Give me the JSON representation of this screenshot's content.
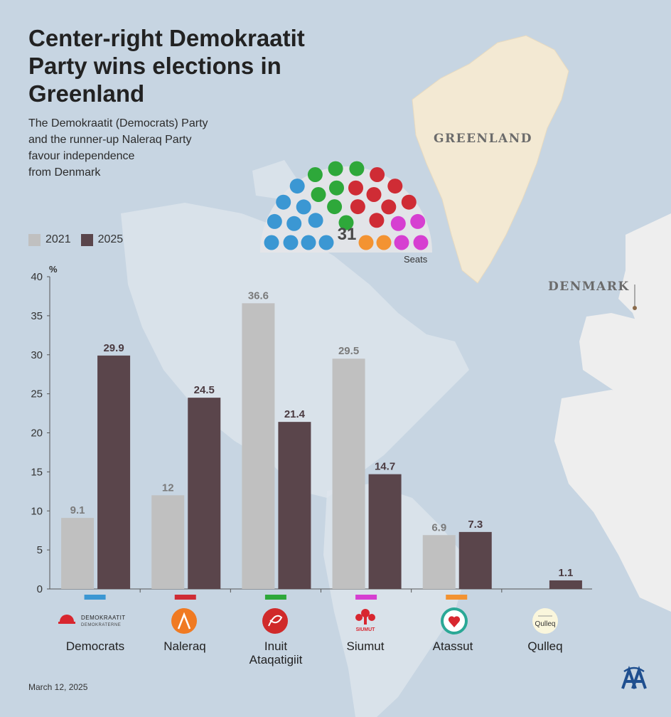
{
  "title": "Center-right Demokraatit Party wins elections in Greenland",
  "subtitle": "The Demokraatit (Democrats) Party\nand the runner-up Naleraq Party\nfavour independence\nfrom Denmark",
  "map_labels": {
    "greenland": "GREENLAND",
    "denmark": "DENMARK"
  },
  "legend": [
    {
      "label": "2021",
      "color": "#c0c0c0"
    },
    {
      "label": "2025",
      "color": "#5a454b"
    }
  ],
  "seats": {
    "total": "31",
    "label": "Seats",
    "parties": [
      {
        "party": "Democrats",
        "seats": 10,
        "color": "#3b97d3"
      },
      {
        "party": "Inuit Ataqatigiit",
        "seats": 7,
        "color": "#2ea83a"
      },
      {
        "party": "Naleraq",
        "seats": 8,
        "color": "#cf2c35"
      },
      {
        "party": "Siumut",
        "seats": 4,
        "color": "#d63fd1"
      },
      {
        "party": "Atassut",
        "seats": 2,
        "color": "#f39332"
      }
    ]
  },
  "chart_data": {
    "type": "bar",
    "ylabel": "%",
    "ylim": [
      0,
      40
    ],
    "yticks": [
      0,
      5,
      10,
      15,
      20,
      25,
      30,
      35,
      40
    ],
    "categories": [
      "Democrats",
      "Naleraq",
      "Inuit Ataqatigiit",
      "Siumut",
      "Atassut",
      "Qulleq"
    ],
    "party_colors": [
      "#3b97d3",
      "#cf2c35",
      "#2ea83a",
      "#d63fd1",
      "#f39332",
      null
    ],
    "series": [
      {
        "name": "2021",
        "color": "#c0c0c0",
        "label_color": "#7a7a7a",
        "values": [
          9.1,
          12,
          36.6,
          29.5,
          6.9,
          null
        ]
      },
      {
        "name": "2025",
        "color": "#5a454b",
        "label_color": "#4a3a40",
        "values": [
          29.9,
          24.5,
          21.4,
          14.7,
          7.3,
          1.1
        ]
      }
    ]
  },
  "party_labels": {
    "democrats": "Democrats",
    "naleraq": "Naleraq",
    "ia_line1": "Inuit",
    "ia_line2": "Ataqatigiit",
    "siumut": "Siumut",
    "atassut": "Atassut",
    "qulleq": "Qulleq"
  },
  "logos": {
    "democrats_line1": "DEMOKRAATIT",
    "democrats_line2": "DEMOKRATERNE",
    "siumut": "SIUMUT",
    "qulleq": "Qulleq"
  },
  "date": "March 12, 2025"
}
